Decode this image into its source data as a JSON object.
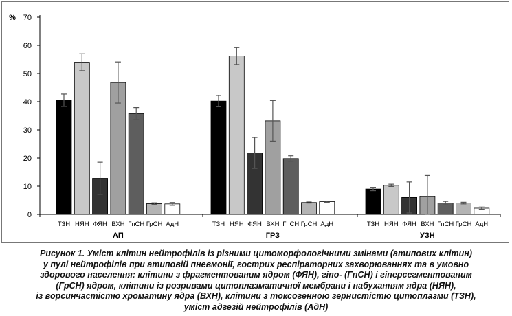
{
  "chart_data": {
    "type": "bar",
    "ylabel": "%",
    "ylim": [
      0,
      70
    ],
    "yticks": [
      0,
      10,
      20,
      30,
      40,
      50,
      60,
      70
    ],
    "grid": false,
    "legend": "none",
    "categories": [
      "ТЗН",
      "НЯН",
      "ФЯН",
      "ВХН",
      "ГпСН",
      "ГрСН",
      "АдН"
    ],
    "bar_colors": [
      "#000000",
      "#c8c8c8",
      "#333333",
      "#a0a0a0",
      "#5e5e5e",
      "#b4b4b4",
      "#ffffff"
    ],
    "groups": [
      {
        "name": "АП",
        "values": [
          40.5,
          54,
          12.8,
          46.8,
          35.8,
          3.8,
          3.7
        ],
        "errors": [
          2.2,
          3,
          5.7,
          7.3,
          2.1,
          0.3,
          0.5
        ]
      },
      {
        "name": "ГРЗ",
        "values": [
          40.2,
          56.2,
          21.8,
          33.2,
          19.8,
          4.2,
          4.5
        ],
        "errors": [
          2,
          3,
          5.5,
          7.2,
          1,
          0.2,
          0.2
        ]
      },
      {
        "name": "УЗН",
        "values": [
          9,
          10.3,
          6,
          6.3,
          4,
          4,
          2.2
        ],
        "errors": [
          0.6,
          0.4,
          5.5,
          7.5,
          0.6,
          0.3,
          0.4
        ]
      }
    ]
  },
  "caption": {
    "lines": [
      "Рисунок 1. Уміст клітин нейтрофілів із різними цитоморфологічними змінами (атипових клітин)",
      "у пулі нейтрофілів при атиповій пневмонії, гострих респіраторних захворюваннях та в умовно",
      "здорового населення: клітини з фрагментованим ядром (ФЯН), гіпо- (ГпСН) і гіперсегментованим",
      "(ГрСН) ядром, клітини із розривами цитоплазматичної мембрани і набуханням ядра (НЯН),",
      "із ворсинчастістю хроматину ядра (ВХН), клітини з токсогенною зернистістю цитоплазми (ТЗН),",
      "уміст адгезій нейтрофілів (АдН)"
    ]
  }
}
